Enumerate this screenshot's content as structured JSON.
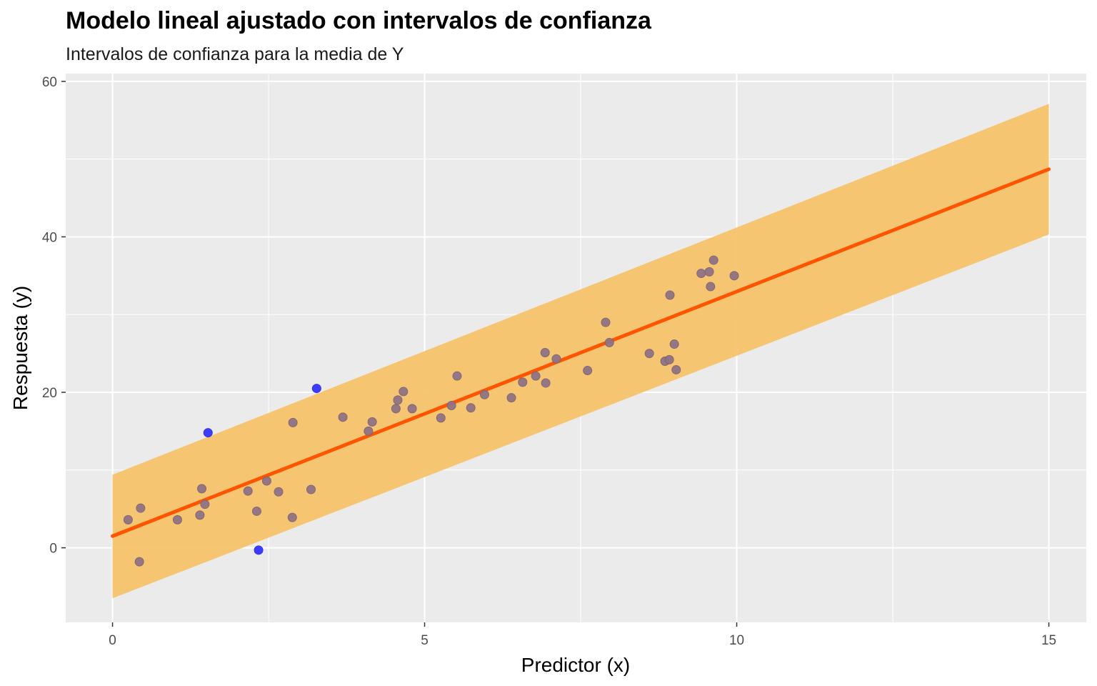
{
  "chart_data": {
    "type": "scatter",
    "title": "Modelo lineal ajustado con intervalos de confianza",
    "subtitle": "Intervalos de confianza para la media de Y",
    "xlabel": "Predictor (x)",
    "ylabel": "Respuesta (y)",
    "xlim": [
      -0.75,
      15.6
    ],
    "ylim": [
      -9.6,
      61
    ],
    "x_ticks": [
      "0",
      "5",
      "10",
      "15"
    ],
    "y_ticks": [
      "0",
      "20",
      "40",
      "60"
    ],
    "grid": true,
    "background": "#EBEBEB",
    "fit_line": {
      "x": [
        0,
        15
      ],
      "y": [
        1.5,
        48.7
      ],
      "color": "#FF5500"
    },
    "interval_band": {
      "x": [
        0,
        15
      ],
      "lower": [
        -6.5,
        40.3
      ],
      "upper": [
        9.4,
        57.1
      ],
      "color": "#F5C36A"
    },
    "series": [
      {
        "color": "#8F7383",
        "points": [
          [
            0.25,
            3.6
          ],
          [
            0.45,
            5.1
          ],
          [
            0.43,
            -1.8
          ],
          [
            1.04,
            3.6
          ],
          [
            1.4,
            4.2
          ],
          [
            1.43,
            7.6
          ],
          [
            1.48,
            5.6
          ],
          [
            2.17,
            7.3
          ],
          [
            2.31,
            4.7
          ],
          [
            2.47,
            8.6
          ],
          [
            2.66,
            7.2
          ],
          [
            2.88,
            3.9
          ],
          [
            2.89,
            16.1
          ],
          [
            3.18,
            7.5
          ],
          [
            3.69,
            16.8
          ],
          [
            4.1,
            15.0
          ],
          [
            4.16,
            16.2
          ],
          [
            4.54,
            17.9
          ],
          [
            4.57,
            19.0
          ],
          [
            4.66,
            20.1
          ],
          [
            4.8,
            17.9
          ],
          [
            5.26,
            16.7
          ],
          [
            5.43,
            18.3
          ],
          [
            5.52,
            22.1
          ],
          [
            5.74,
            18.0
          ],
          [
            5.96,
            19.7
          ],
          [
            6.39,
            19.3
          ],
          [
            6.57,
            21.3
          ],
          [
            6.78,
            22.1
          ],
          [
            6.93,
            25.1
          ],
          [
            6.94,
            21.2
          ],
          [
            7.11,
            24.3
          ],
          [
            7.61,
            22.8
          ],
          [
            7.9,
            29.0
          ],
          [
            7.96,
            26.4
          ],
          [
            8.6,
            25.0
          ],
          [
            8.85,
            24.0
          ],
          [
            8.92,
            24.2
          ],
          [
            8.93,
            32.5
          ],
          [
            9.0,
            26.2
          ],
          [
            9.03,
            22.9
          ],
          [
            9.43,
            35.3
          ],
          [
            9.56,
            35.5
          ],
          [
            9.58,
            33.6
          ],
          [
            9.63,
            37.0
          ],
          [
            9.96,
            35.0
          ]
        ]
      },
      {
        "color": "#3333FF",
        "points": [
          [
            1.53,
            14.8
          ],
          [
            2.34,
            -0.3
          ],
          [
            3.27,
            20.5
          ]
        ]
      }
    ]
  }
}
